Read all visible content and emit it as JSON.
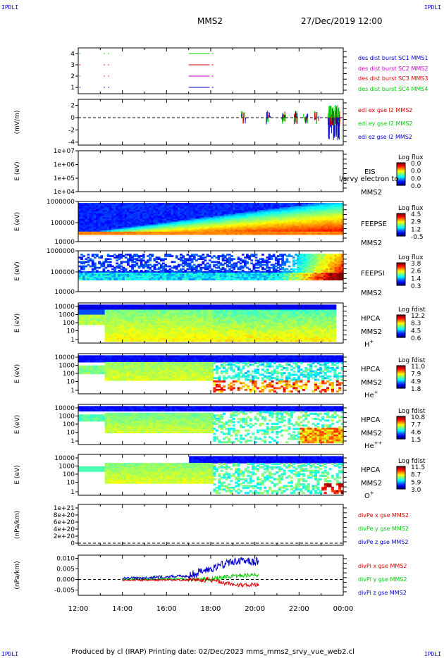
{
  "corner_label": "IPDLI",
  "header": {
    "spacecraft": "MMS2",
    "datetime": "27/Dec/2019 12:00"
  },
  "footer": {
    "text": "Produced by cl (IRAP)    Printing date: 02/Dec/2023    mms_mms2_srvy_vue_web2.cl"
  },
  "time_axis": {
    "ticks": [
      "12:00",
      "14:00",
      "16:00",
      "18:00",
      "20:00",
      "22:00",
      "00:00"
    ]
  },
  "colors": {
    "red": "#dd0000",
    "green": "#00cc00",
    "blue": "#0000cc",
    "magenta": "#cc00cc"
  },
  "chart_data": [
    {
      "type": "line",
      "panel": "availability",
      "yticks": [
        "4",
        "3",
        "2",
        "1"
      ],
      "legend": [
        {
          "text": "des dist burst SC1 MMS1",
          "color": "#0000cc"
        },
        {
          "text": "des dist burst SC2 MMS2",
          "color": "#cc00cc"
        },
        {
          "text": "des dist burst SC3 MMS3",
          "color": "#dd0000"
        },
        {
          "text": "des dist burst SC4 MMS4",
          "color": "#00cc00"
        }
      ]
    },
    {
      "type": "line",
      "panel": "edi",
      "ylabel": "(mV/m)",
      "yticks": [
        "2",
        "0",
        "-2",
        "-4"
      ],
      "ylim": [
        -4.5,
        3
      ],
      "legend": [
        {
          "text": "edi ex gse l2 MMS2",
          "color": "#dd0000"
        },
        {
          "text": "edi ey gse l2 MMS2",
          "color": "#00cc00"
        },
        {
          "text": "edi ez gse l2 MMS2",
          "color": "#0000cc"
        }
      ]
    },
    {
      "type": "heatmap",
      "panel": "eis",
      "ylabel": "E (eV)",
      "yticks": [
        "1e+07",
        "1e+06",
        "1e+05",
        "1e+04"
      ],
      "labels": [
        "EIS",
        "MMS2"
      ],
      "overlay": "l/srvy electron to",
      "colorbar": {
        "title": "Log flux",
        "ticks": [
          "0.0",
          "0.0",
          "0.0",
          "0.0"
        ]
      }
    },
    {
      "type": "heatmap",
      "panel": "feepse",
      "ylabel": "E (eV)",
      "yticks": [
        "1000000",
        "100000",
        "10000"
      ],
      "labels": [
        "FEEPSE",
        "MMS2"
      ],
      "colorbar": {
        "title": "Log flux",
        "ticks": [
          "4.5",
          "2.9",
          "1.2",
          "-0.5"
        ]
      }
    },
    {
      "type": "heatmap",
      "panel": "feepsi",
      "ylabel": "E (eV)",
      "yticks": [
        "1000000",
        "100000",
        "10000"
      ],
      "labels": [
        "FEEPSI",
        "MMS2"
      ],
      "colorbar": {
        "title": "Log flux",
        "ticks": [
          "3.8",
          "2.6",
          "1.4",
          "0.3"
        ]
      }
    },
    {
      "type": "heatmap",
      "panel": "hpca_h",
      "ylabel": "E (eV)",
      "yticks": [
        "10000",
        "1000",
        "100",
        "10",
        "1"
      ],
      "labels": [
        "HPCA",
        "MMS2",
        "H"
      ],
      "sup": "+",
      "colorbar": {
        "title": "Log fdist",
        "ticks": [
          "12.2",
          "8.3",
          "4.5",
          "0.6"
        ]
      }
    },
    {
      "type": "heatmap",
      "panel": "hpca_he",
      "ylabel": "E (eV)",
      "yticks": [
        "10000",
        "1000",
        "100",
        "10",
        "1"
      ],
      "labels": [
        "HPCA",
        "MMS2",
        "He"
      ],
      "sup": "+",
      "colorbar": {
        "title": "Log fdist",
        "ticks": [
          "11.0",
          "7.9",
          "4.9",
          "1.8"
        ]
      }
    },
    {
      "type": "heatmap",
      "panel": "hpca_he2",
      "ylabel": "E (eV)",
      "yticks": [
        "10000",
        "1000",
        "100",
        "10",
        "1"
      ],
      "labels": [
        "HPCA",
        "MMS2",
        "He"
      ],
      "sup": "++",
      "colorbar": {
        "title": "Log fdist",
        "ticks": [
          "10.8",
          "7.7",
          "4.6",
          "1.5"
        ]
      }
    },
    {
      "type": "heatmap",
      "panel": "hpca_o",
      "ylabel": "E (eV)",
      "yticks": [
        "10000",
        "1000",
        "100",
        "10",
        "1"
      ],
      "labels": [
        "HPCA",
        "MMS2",
        "O"
      ],
      "sup": "+",
      "colorbar": {
        "title": "Log fdist",
        "ticks": [
          "11.5",
          "8.7",
          "5.9",
          "3.0"
        ]
      }
    },
    {
      "type": "line",
      "panel": "divpe",
      "ylabel": "(nPa/km)",
      "yticks": [
        "1e+21",
        "8e+20",
        "6e+20",
        "4e+20",
        "2e+20",
        "0"
      ],
      "legend": [
        {
          "text": "divPe x gse MMS2",
          "color": "#dd0000"
        },
        {
          "text": "divPe y gse MMS2",
          "color": "#00cc00"
        },
        {
          "text": "divPe z gse MMS2",
          "color": "#0000cc"
        }
      ]
    },
    {
      "type": "line",
      "panel": "divpi",
      "ylabel": "(nPa/km)",
      "yticks": [
        "0.010",
        "0.005",
        "0.000",
        "-0.005"
      ],
      "ylim": [
        -0.0075,
        0.0115
      ],
      "legend": [
        {
          "text": "divPi x gse MMS2",
          "color": "#dd0000"
        },
        {
          "text": "divPi y gse MMS2",
          "color": "#00cc00"
        },
        {
          "text": "divPi z gse MMS2",
          "color": "#0000cc"
        }
      ]
    }
  ]
}
